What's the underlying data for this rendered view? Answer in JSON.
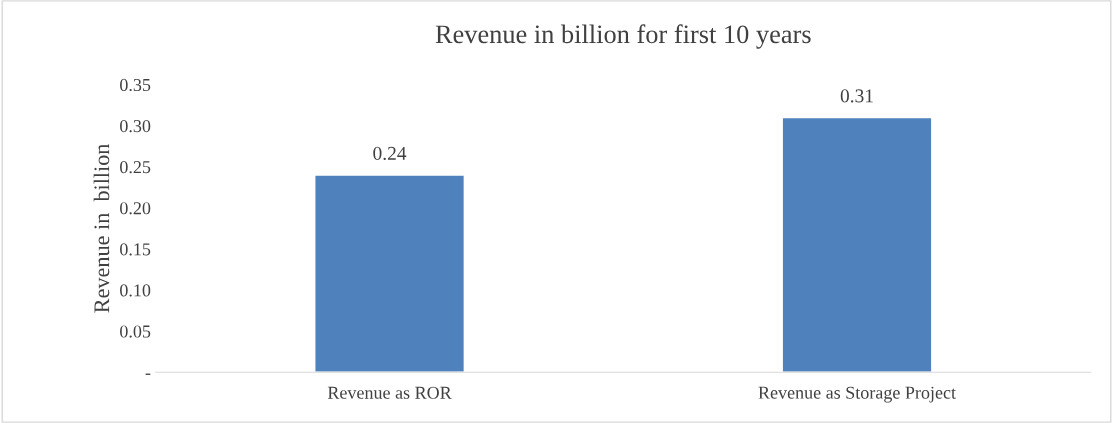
{
  "chart_data": {
    "type": "bar",
    "title": "Revenue in billion for first 10 years",
    "ylabel": "Revenue in  billion",
    "categories": [
      "Revenue as ROR",
      "Revenue as Storage Project"
    ],
    "values": [
      0.24,
      0.31
    ],
    "color": "#4f81bd",
    "ylim": [
      0,
      0.35
    ],
    "yticks": [
      {
        "value": 0,
        "label": "-"
      },
      {
        "value": 0.05,
        "label": "0.05"
      },
      {
        "value": 0.1,
        "label": "0.10"
      },
      {
        "value": 0.15,
        "label": "0.15"
      },
      {
        "value": 0.2,
        "label": "0.20"
      },
      {
        "value": 0.25,
        "label": "0.25"
      },
      {
        "value": 0.3,
        "label": "0.30"
      },
      {
        "value": 0.35,
        "label": "0.35"
      }
    ],
    "data_labels": true,
    "grid": false,
    "legend": false
  }
}
